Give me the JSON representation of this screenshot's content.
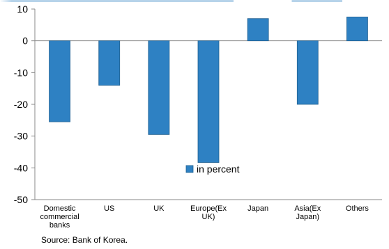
{
  "chart_data": {
    "type": "bar",
    "categories": [
      [
        "Domestic",
        "commercial",
        "banks"
      ],
      [
        "US"
      ],
      [
        "UK"
      ],
      [
        "Europe(Ex",
        "UK)"
      ],
      [
        "Japan"
      ],
      [
        "Asia(Ex",
        "Japan)"
      ],
      [
        "Others"
      ]
    ],
    "series": [
      {
        "name": "in percent",
        "values": [
          -25.5,
          -14,
          -29.5,
          -38.3,
          7,
          -20,
          7.5
        ]
      }
    ],
    "ylim": [
      -50,
      10
    ],
    "yticks": [
      10,
      0,
      -10,
      -20,
      -30,
      -40,
      -50
    ],
    "xlabel": "",
    "ylabel": "",
    "grid": false,
    "legend": "bottom-center",
    "colors": {
      "bar": "#2E81C3",
      "bar_stroke": "#1F5F8F",
      "axis": "#888888",
      "title_strip": "#2E81C3"
    }
  },
  "footer": {
    "source": "Source: Bank of Korea."
  }
}
